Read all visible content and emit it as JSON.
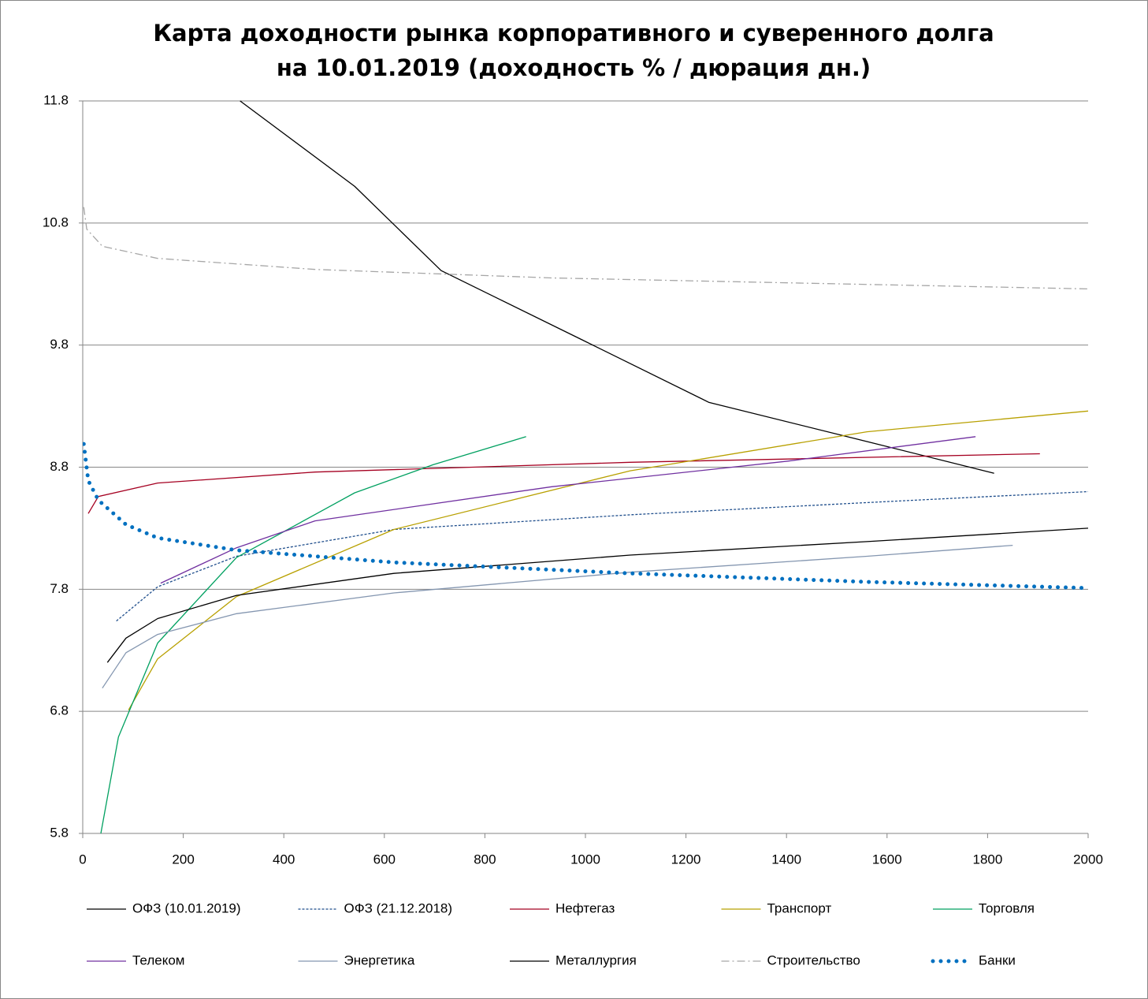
{
  "chart_data": {
    "type": "line",
    "title": "Карта доходности рынка корпоративного и суверенного долга на 10.01.2019 (доходность % / дюрация дн.)",
    "xlim": [
      0,
      2000
    ],
    "xticks": [
      0,
      200,
      400,
      600,
      800,
      1000,
      1200,
      1400,
      1600,
      1800,
      2000
    ],
    "ylim": [
      5.8,
      11.8
    ],
    "yticks": [
      5.8,
      6.8,
      7.8,
      8.8,
      9.8,
      10.8,
      11.8
    ],
    "grid": true,
    "legend": "bottom",
    "series": [
      {
        "name": "ОФЗ (10.01.2019)",
        "color": "#000000",
        "dash": "solid",
        "x": [
          313,
          541,
          713,
          995,
          1246,
          1560,
          1813
        ],
        "values": [
          11.8,
          11.1,
          10.41,
          9.84,
          9.33,
          9.01,
          8.75
        ]
      },
      {
        "name": "ОФЗ (21.12.2018)",
        "color": "#1f4e8c",
        "dash": "dashed",
        "x": [
          67,
          149,
          306,
          619,
          1089,
          1560,
          2000
        ],
        "values": [
          7.54,
          7.82,
          8.07,
          8.29,
          8.41,
          8.51,
          8.6
        ]
      },
      {
        "name": "Нефтегаз",
        "color": "#a50021",
        "dash": "solid",
        "x": [
          11,
          31,
          149,
          462,
          1089,
          1904
        ],
        "values": [
          8.42,
          8.56,
          8.67,
          8.76,
          8.84,
          8.91
        ]
      },
      {
        "name": "Транспорт",
        "color": "#b8a000",
        "dash": "solid",
        "x": [
          91,
          149,
          306,
          619,
          1089,
          1560,
          2000
        ],
        "values": [
          6.81,
          7.23,
          7.74,
          8.29,
          8.77,
          9.09,
          9.26
        ]
      },
      {
        "name": "Торговля",
        "color": "#00a060",
        "dash": "solid",
        "x": [
          36,
          71,
          149,
          306,
          541,
          697,
          882
        ],
        "values": [
          5.8,
          6.59,
          7.36,
          8.06,
          8.59,
          8.82,
          9.05
        ]
      },
      {
        "name": "Телеком",
        "color": "#7030a0",
        "dash": "solid",
        "x": [
          155,
          306,
          462,
          933,
          1403,
          1776
        ],
        "values": [
          7.85,
          8.14,
          8.36,
          8.64,
          8.85,
          9.05
        ]
      },
      {
        "name": "Энергетика",
        "color": "#8496b0",
        "dash": "solid",
        "x": [
          39,
          86,
          149,
          306,
          619,
          1089,
          1560,
          1850
        ],
        "values": [
          6.99,
          7.28,
          7.43,
          7.6,
          7.77,
          7.94,
          8.07,
          8.16
        ]
      },
      {
        "name": "Металлургия",
        "color": "#000000",
        "dash": "solid",
        "x": [
          49,
          86,
          149,
          306,
          619,
          1089,
          1560,
          2000
        ],
        "values": [
          7.2,
          7.4,
          7.56,
          7.75,
          7.93,
          8.08,
          8.19,
          8.3
        ]
      },
      {
        "name": "Строительство",
        "color": "#a6a6a6",
        "dash": "dashdot",
        "x": [
          2,
          8,
          39,
          149,
          462,
          933,
          1403,
          2000
        ],
        "values": [
          10.93,
          10.75,
          10.61,
          10.51,
          10.42,
          10.35,
          10.31,
          10.26
        ]
      },
      {
        "name": "Банки",
        "color": "#0070c0",
        "dash": "dotted",
        "x": [
          2,
          11,
          31,
          86,
          149,
          306,
          619,
          1089,
          1560,
          2000
        ],
        "values": [
          8.99,
          8.69,
          8.53,
          8.33,
          8.22,
          8.12,
          8.02,
          7.93,
          7.86,
          7.81
        ]
      }
    ]
  }
}
